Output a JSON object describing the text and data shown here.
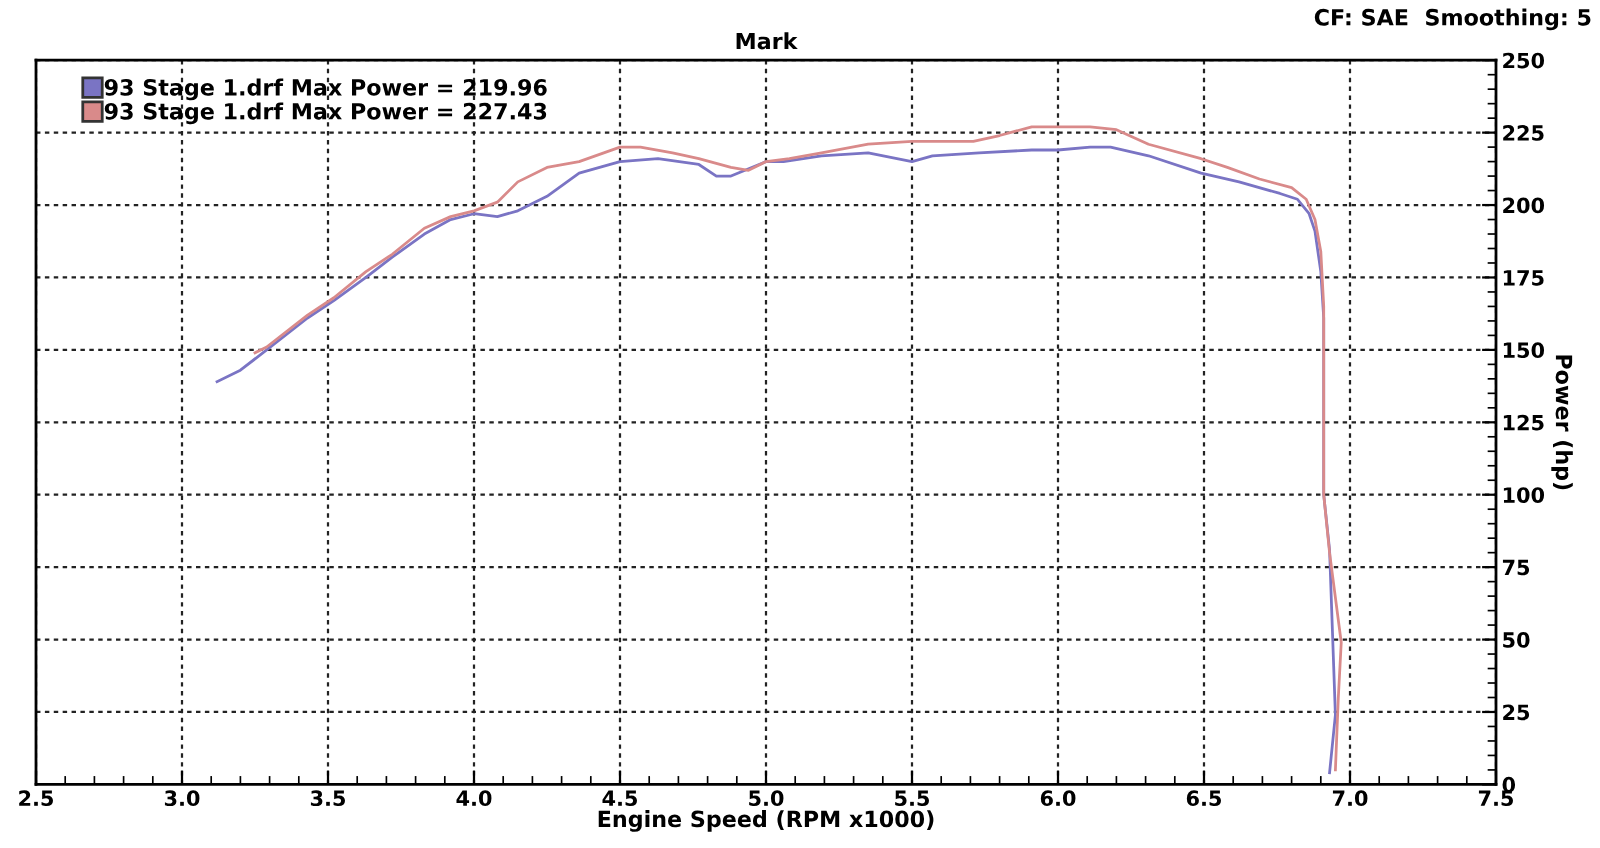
{
  "chart_data": {
    "type": "line",
    "title": "Mark",
    "xlabel": "Engine Speed (RPM x1000)",
    "ylabel": "Power (hp)",
    "annotations": [
      "CF: SAE  Smoothing: 5"
    ],
    "series": [
      {
        "name": "93 Stage 1.drf Max Power = 219.96",
        "color": "#7a74c4",
        "x": [
          3.12,
          3.2,
          3.29,
          3.43,
          3.52,
          3.63,
          3.72,
          3.83,
          3.92,
          4.0,
          4.08,
          4.15,
          4.25,
          4.36,
          4.5,
          4.63,
          4.77,
          4.83,
          4.88,
          5.0,
          5.06,
          5.19,
          5.35,
          5.5,
          5.57,
          5.73,
          5.91,
          6.0,
          6.11,
          6.18,
          6.31,
          6.49,
          6.62,
          6.76,
          6.82,
          6.86,
          6.88,
          6.9,
          6.91,
          6.91,
          6.93,
          6.95,
          6.93
        ],
        "values": [
          139,
          143,
          150,
          161,
          167,
          175,
          182,
          190,
          195,
          197,
          196,
          198,
          203,
          211,
          215,
          216,
          214,
          210,
          210,
          215,
          215,
          217,
          218,
          215,
          217,
          218,
          219,
          219,
          220,
          220,
          217,
          211,
          208,
          204,
          202,
          197,
          191,
          177,
          161,
          100,
          81,
          24,
          4
        ]
      },
      {
        "name": "93 Stage 1.drf Max Power = 227.43",
        "color": "#d98a8a",
        "x": [
          3.25,
          3.29,
          3.43,
          3.52,
          3.63,
          3.72,
          3.83,
          3.92,
          4.0,
          4.08,
          4.15,
          4.25,
          4.36,
          4.5,
          4.57,
          4.68,
          4.77,
          4.88,
          4.94,
          5.0,
          5.08,
          5.19,
          5.35,
          5.5,
          5.71,
          5.8,
          5.91,
          6.0,
          6.11,
          6.2,
          6.31,
          6.49,
          6.58,
          6.69,
          6.8,
          6.85,
          6.88,
          6.9,
          6.91,
          6.91,
          6.93,
          6.97,
          6.96,
          6.95
        ],
        "values": [
          149,
          151,
          162,
          168,
          177,
          183,
          192,
          196,
          198,
          201,
          208,
          213,
          215,
          220,
          220,
          218,
          216,
          213,
          212,
          215,
          216,
          218,
          221,
          222,
          222,
          224,
          227,
          227,
          227,
          226,
          221,
          216,
          213,
          209,
          206,
          202,
          195,
          184,
          165,
          100,
          80,
          49,
          30,
          5
        ]
      }
    ],
    "xlim": [
      2.5,
      7.5
    ],
    "xticks": [
      2.5,
      {
        "value": 3,
        "label": "3.0"
      },
      3.5,
      {
        "value": 4,
        "label": "4.0"
      },
      4.5,
      {
        "value": 5,
        "label": "5.0"
      },
      5.5,
      {
        "value": 6,
        "label": "6.0"
      },
      6.5,
      {
        "value": 7,
        "label": "7.0"
      },
      7.5
    ],
    "ylim": [
      0,
      250
    ],
    "yticks": [
      0,
      25,
      50,
      75,
      100,
      125,
      150,
      175,
      200,
      225,
      250
    ],
    "grid": true,
    "legend": "top left",
    "marker": "none",
    "line_style": "solid"
  }
}
